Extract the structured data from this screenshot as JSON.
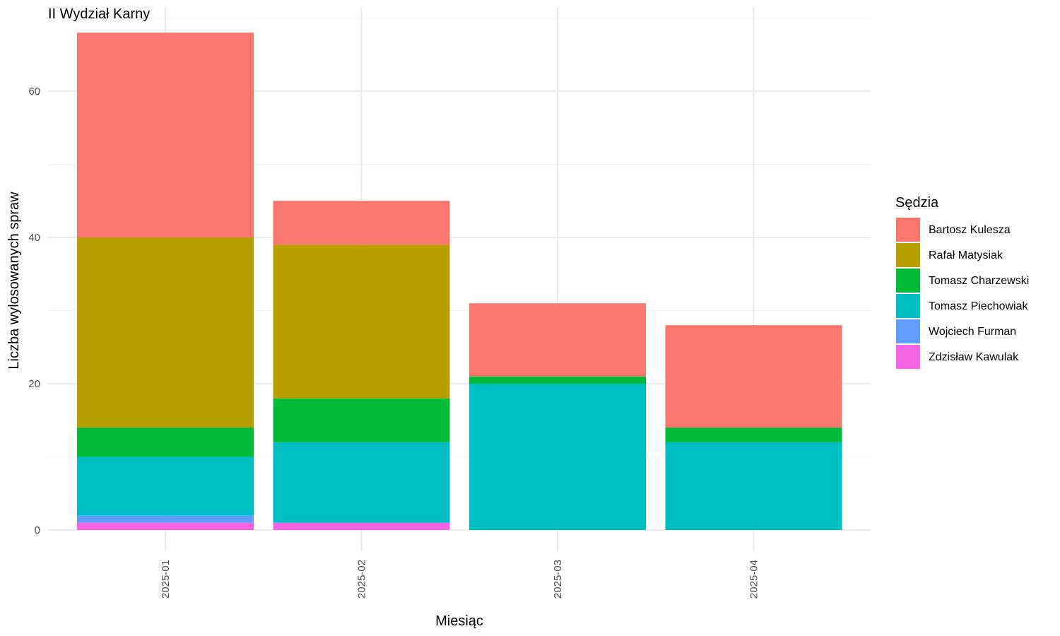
{
  "chart_data": {
    "type": "bar",
    "stacked": true,
    "title": "II Wydział Karny",
    "xlabel": "Miesiąc",
    "ylabel": "Liczba wylosowanych spraw",
    "categories": [
      "2025-01",
      "2025-02",
      "2025-03",
      "2025-04"
    ],
    "ylim": [
      0,
      68
    ],
    "yticks": [
      0,
      20,
      40,
      60
    ],
    "grid": true,
    "legend_title": "Sędzia",
    "legend_position": "right",
    "series": [
      {
        "name": "Zdzisław Kawulak",
        "color": "#F564E3",
        "values": [
          1,
          1,
          0,
          0
        ]
      },
      {
        "name": "Wojciech Furman",
        "color": "#619CFF",
        "values": [
          1,
          0,
          0,
          0
        ]
      },
      {
        "name": "Tomasz Piechowiak",
        "color": "#00BFC4",
        "values": [
          8,
          11,
          20,
          12
        ]
      },
      {
        "name": "Tomasz Charzewski",
        "color": "#00BA38",
        "values": [
          4,
          6,
          1,
          2
        ]
      },
      {
        "name": "Rafał Matysiak",
        "color": "#B79F00",
        "values": [
          26,
          21,
          0,
          0
        ]
      },
      {
        "name": "Bartosz Kulesza",
        "color": "#F8766D",
        "values": [
          28,
          6,
          10,
          14
        ]
      }
    ],
    "legend_order": [
      "Bartosz Kulesza",
      "Rafał Matysiak",
      "Tomasz Charzewski",
      "Tomasz Piechowiak",
      "Wojciech Furman",
      "Zdzisław Kawulak"
    ]
  }
}
